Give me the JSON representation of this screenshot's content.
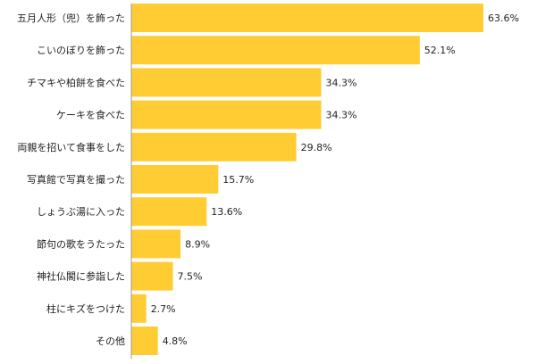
{
  "chart_data": {
    "type": "bar",
    "orientation": "horizontal",
    "title": "",
    "xlabel": "",
    "ylabel": "",
    "categories": [
      "五月人形（兜）を飾った",
      "こいのぼりを飾った",
      "チマキや柏餅を食べた",
      "ケーキを食べた",
      "両親を招いて食事をした",
      "写真館で写真を撮った",
      "しょうぶ湯に入った",
      "節句の歌をうたった",
      "神社仏閣に参詣した",
      "柱にキズをつけた",
      "その他"
    ],
    "values": [
      63.6,
      52.1,
      34.3,
      34.3,
      29.8,
      15.7,
      13.6,
      8.9,
      7.5,
      2.7,
      4.8
    ],
    "value_labels": [
      "63.6%",
      "52.1%",
      "34.3%",
      "34.3%",
      "29.8%",
      "15.7%",
      "13.6%",
      "8.9%",
      "7.5%",
      "2.7%",
      "4.8%"
    ],
    "xlim": [
      0,
      63.6
    ],
    "grid": false,
    "legend": "none",
    "colors": {
      "bar": "#ffcc33",
      "axis": "#999999",
      "text": "#222222"
    }
  }
}
